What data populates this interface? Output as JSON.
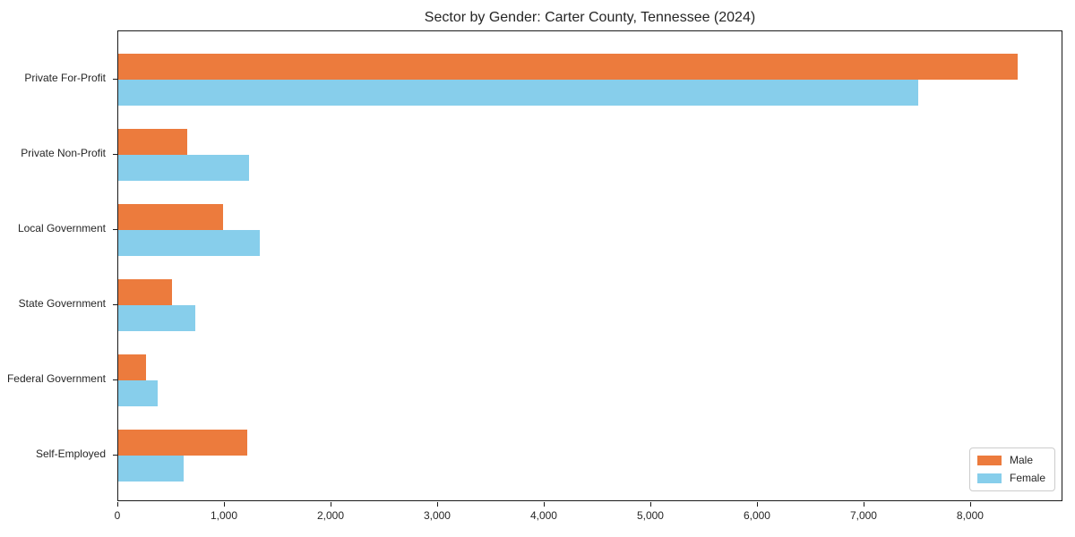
{
  "chart_data": {
    "type": "bar",
    "orientation": "horizontal",
    "title": "Sector by Gender: Carter County, Tennessee (2024)",
    "categories": [
      "Private For-Profit",
      "Private Non-Profit",
      "Local Government",
      "State Government",
      "Federal Government",
      "Self-Employed"
    ],
    "series": [
      {
        "name": "Male",
        "color": "#EC7B3D",
        "values": [
          8440,
          650,
          980,
          500,
          260,
          1210
        ]
      },
      {
        "name": "Female",
        "color": "#87CEEB",
        "values": [
          7500,
          1230,
          1330,
          720,
          370,
          610
        ]
      }
    ],
    "xlabel": "",
    "ylabel": "",
    "xlim": [
      0,
      8866
    ],
    "x_ticks": [
      0,
      1000,
      2000,
      3000,
      4000,
      5000,
      6000,
      7000,
      8000
    ],
    "x_tick_labels": [
      "0",
      "1,000",
      "2,000",
      "3,000",
      "4,000",
      "5,000",
      "6,000",
      "7,000",
      "8,000"
    ],
    "grid": false,
    "legend_position": "lower right"
  }
}
